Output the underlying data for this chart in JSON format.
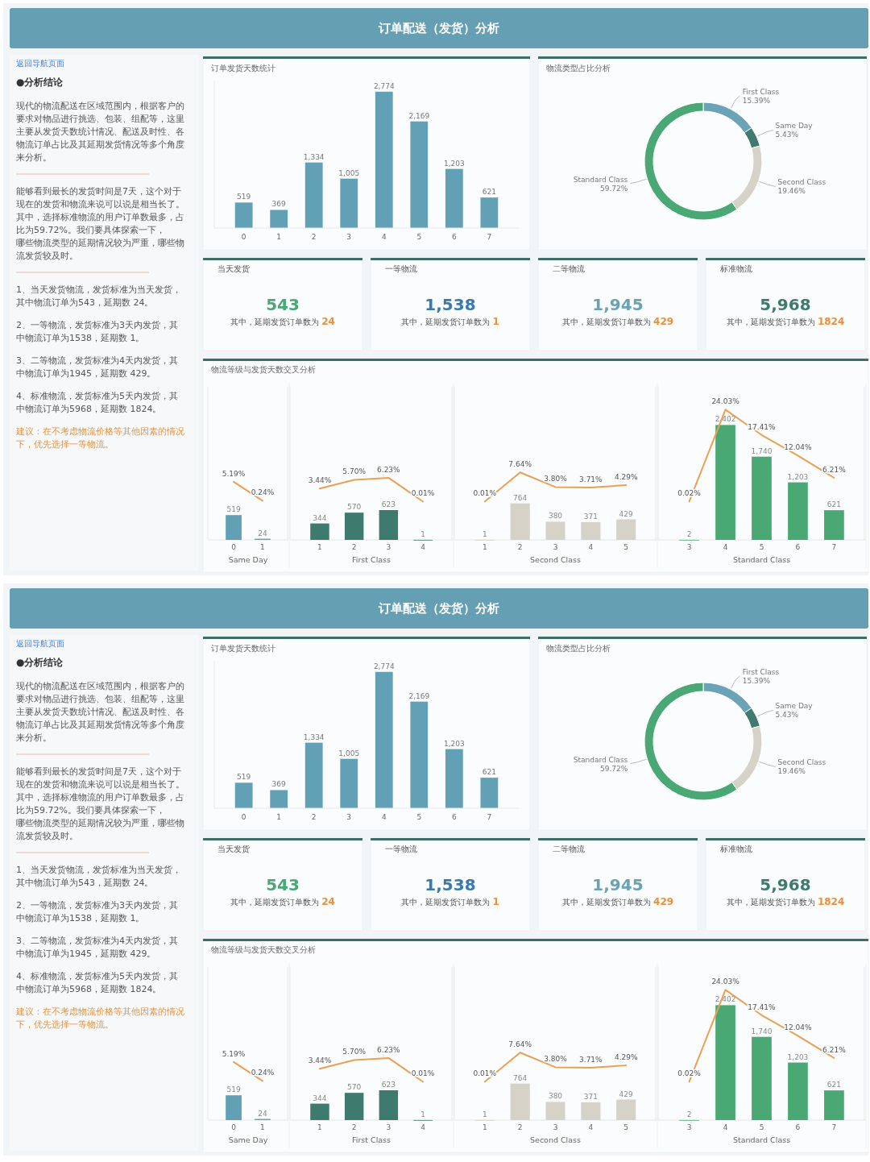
{
  "chart_data": [
    {
      "type": "other",
      "title": "订单配送（发货）分析",
      "annotations": [
        "返回导航页面",
        "●分析结论",
        "现代的物流配送在区域范围内，根据客户的要求对物品进行挑选、包装、组配等，这里主要从发货天数统计情况、配送及时性、各物流订单占比及其延期发货情况等多个角度来分析。",
        "能够看到最长的发货时间是7天，这个对于现在的发货和物流来说可以说是相当长了。其中，选择标准物流的用户订单数最多，占比为59.72%。我们要具体探索一下，哪些物流类型的延期情况较为严重，哪些物流发货较及时。",
        "1、当天发货物流，发货标准为当天发货，其中物流订单为543，延期数 24。",
        "2、一等物流，发货标准为3天内发货，其中物流订单为1538，延期数 1。",
        "3、二等物流，发货标准为4天内发货，其中物流订单为1945，延期数 429。",
        "4、标准物流，发货标准为5天内发货，其中物流订单为5968，延期数 1824。",
        "建议：在不考虑物流价格等其他因素的情况下，优先选择一等物流。"
      ]
    },
    {
      "type": "bar",
      "title": "订单发货天数统计",
      "categories": [
        "0",
        "1",
        "2",
        "3",
        "4",
        "5",
        "6",
        "7"
      ],
      "values": [
        519,
        369,
        1334,
        1005,
        2774,
        2169,
        1203,
        621
      ],
      "value_labels": [
        "519",
        "369",
        "1,334",
        "1,005",
        "2,774",
        "2,169",
        "1,203",
        "621"
      ],
      "color": "#62a0b6",
      "ylim": [
        0,
        3000
      ],
      "tick_labels": "x"
    },
    {
      "type": "donut",
      "title": "物流类型占比分析",
      "categories": [
        "First Class",
        "Same Day",
        "Second Class",
        "Standard Class"
      ],
      "values": [
        15.39,
        5.43,
        19.46,
        59.72
      ],
      "value_labels": [
        "15.39%",
        "5.43%",
        "19.46%",
        "59.72%"
      ],
      "colors": [
        "#6aa3b8",
        "#3f7a6e",
        "#d6d2c8",
        "#4aa874"
      ]
    },
    {
      "type": "other",
      "title": "当天发货",
      "annotations": [
        "543",
        "其中，延期发货订单数为 ",
        "24"
      ],
      "color": "#4aa874"
    },
    {
      "type": "other",
      "title": "一等物流",
      "annotations": [
        "1,538",
        "其中，延期发货订单数为 ",
        "1"
      ],
      "color": "#3b78b0"
    },
    {
      "type": "other",
      "title": "二等物流",
      "annotations": [
        "1,945",
        "其中，延期发货订单数为 ",
        "429"
      ],
      "color": "#6aa3b8"
    },
    {
      "type": "other",
      "title": "标准物流",
      "annotations": [
        "5,968",
        "其中，延期发货订单数为 ",
        "1824"
      ],
      "color": "#3f7a6e"
    },
    {
      "type": "bar",
      "title": "物流等级与发货天数交叉分析",
      "xlabel": "Same Day",
      "categories": [
        "0",
        "1"
      ],
      "ylim": [
        0,
        3200
      ],
      "y2lim": [
        -10,
        30
      ],
      "tick_labels": "x",
      "series": [
        {
          "type": "bar",
          "color": "#62a0b6",
          "values": [
            519,
            24
          ],
          "value_labels": [
            "519",
            "24"
          ]
        },
        {
          "type": "line",
          "axis": "y2",
          "color": "#e8a153",
          "values": [
            5.19,
            0.24
          ],
          "value_labels": [
            "5.19%",
            "0.24%"
          ]
        }
      ]
    },
    {
      "type": "bar",
      "xlabel": "First Class",
      "categories": [
        "1",
        "2",
        "3",
        "4"
      ],
      "ylim": [
        0,
        3200
      ],
      "y2lim": [
        -10,
        30
      ],
      "tick_labels": "x",
      "series": [
        {
          "type": "bar",
          "color": "#3f7a6e",
          "values": [
            344,
            570,
            623,
            1
          ],
          "value_labels": [
            "344",
            "570",
            "623",
            "1"
          ]
        },
        {
          "type": "line",
          "axis": "y2",
          "color": "#e8a153",
          "values": [
            3.44,
            5.7,
            6.23,
            0.01
          ],
          "value_labels": [
            "3.44%",
            "5.70%",
            "6.23%",
            "0.01%"
          ]
        }
      ]
    },
    {
      "type": "bar",
      "xlabel": "Second Class",
      "categories": [
        "1",
        "2",
        "3",
        "4",
        "5"
      ],
      "ylim": [
        0,
        3200
      ],
      "y2lim": [
        -10,
        30
      ],
      "tick_labels": "x",
      "series": [
        {
          "type": "bar",
          "color": "#d6d2c8",
          "values": [
            1,
            764,
            380,
            371,
            429
          ],
          "value_labels": [
            "1",
            "764",
            "380",
            "371",
            "429"
          ]
        },
        {
          "type": "line",
          "axis": "y2",
          "color": "#e8a153",
          "values": [
            0.01,
            7.64,
            3.8,
            3.71,
            4.29
          ],
          "value_labels": [
            "0.01%",
            "7.64%",
            "3.80%",
            "3.71%",
            "4.29%"
          ]
        }
      ]
    },
    {
      "type": "bar",
      "xlabel": "Standard Class",
      "categories": [
        "3",
        "4",
        "5",
        "6",
        "7"
      ],
      "ylim": [
        0,
        3200
      ],
      "y2lim": [
        -10,
        30
      ],
      "tick_labels": "x",
      "series": [
        {
          "type": "bar",
          "color": "#4aa874",
          "values": [
            2,
            2402,
            1740,
            1203,
            621
          ],
          "value_labels": [
            "2",
            "2,402",
            "1,740",
            "1,203",
            "621"
          ]
        },
        {
          "type": "line",
          "axis": "y2",
          "color": "#e8a153",
          "values": [
            0.02,
            24.03,
            17.41,
            12.04,
            6.21
          ],
          "value_labels": [
            "0.02%",
            "24.03%",
            "17.41%",
            "12.04%",
            "6.21%"
          ]
        }
      ]
    },
    {
      "type": "other",
      "title": "订单配送（发货）分析",
      "annotations": [
        "返回导航页面",
        "●分析结论",
        "现代的物流配送在区域范围内，根据客户的要求对物品进行挑选、包装、组配等，这里主要从发货天数统计情况、配送及时性、各物流订单占比及其延期发货情况等多个角度来分析。",
        "能够看到最长的发货时间是7天，这个对于现在的发货和物流来说可以说是相当长了。其中，选择标准物流的用户订单数最多，占比为59.72%。我们要具体探索一下，哪些物流类型的延期情况较为严重，哪些物流发货较及时。",
        "1、当天发货物流，发货标准为当天发货，其中物流订单为543，延期数 24。",
        "2、一等物流，发货标准为3天内发货，其中物流订单为1538，延期数 1。",
        "3、二等物流，发货标准为4天内发货，其中物流订单为1945，延期数 429。",
        "4、标准物流，发货标准为5天内发货，其中物流订单为5968，延期数 1824。",
        "建议：在不考虑物流价格等其他因素的情况下，优先选择一等物流。"
      ]
    },
    {
      "type": "bar",
      "title": "订单发货天数统计",
      "categories": [
        "0",
        "1",
        "2",
        "3",
        "4",
        "5",
        "6",
        "7"
      ],
      "values": [
        519,
        369,
        1334,
        1005,
        2774,
        2169,
        1203,
        621
      ],
      "value_labels": [
        "519",
        "369",
        "1,334",
        "1,005",
        "2,774",
        "2,169",
        "1,203",
        "621"
      ],
      "color": "#62a0b6",
      "ylim": [
        0,
        3000
      ],
      "tick_labels": "x"
    },
    {
      "type": "donut",
      "title": "物流类型占比分析",
      "categories": [
        "First Class",
        "Same Day",
        "Second Class",
        "Standard Class"
      ],
      "values": [
        15.39,
        5.43,
        19.46,
        59.72
      ],
      "value_labels": [
        "15.39%",
        "5.43%",
        "19.46%",
        "59.72%"
      ],
      "colors": [
        "#6aa3b8",
        "#3f7a6e",
        "#d6d2c8",
        "#4aa874"
      ]
    },
    {
      "type": "other",
      "title": "当天发货",
      "annotations": [
        "543",
        "其中，延期发货订单数为 ",
        "24"
      ],
      "color": "#4aa874"
    },
    {
      "type": "other",
      "title": "一等物流",
      "annotations": [
        "1,538",
        "其中，延期发货订单数为 ",
        "1"
      ],
      "color": "#3b78b0"
    },
    {
      "type": "other",
      "title": "二等物流",
      "annotations": [
        "1,945",
        "其中，延期发货订单数为 ",
        "429"
      ],
      "color": "#6aa3b8"
    },
    {
      "type": "other",
      "title": "标准物流",
      "annotations": [
        "5,968",
        "其中，延期发货订单数为 ",
        "1824"
      ],
      "color": "#3f7a6e"
    },
    {
      "type": "bar",
      "title": "物流等级与发货天数交叉分析",
      "xlabel": "Same Day",
      "categories": [
        "0",
        "1"
      ],
      "ylim": [
        0,
        3200
      ],
      "y2lim": [
        -10,
        30
      ],
      "tick_labels": "x",
      "series": [
        {
          "type": "bar",
          "color": "#62a0b6",
          "values": [
            519,
            24
          ],
          "value_labels": [
            "519",
            "24"
          ]
        },
        {
          "type": "line",
          "axis": "y2",
          "color": "#e8a153",
          "values": [
            5.19,
            0.24
          ],
          "value_labels": [
            "5.19%",
            "0.24%"
          ]
        }
      ]
    },
    {
      "type": "bar",
      "xlabel": "First Class",
      "categories": [
        "1",
        "2",
        "3",
        "4"
      ],
      "ylim": [
        0,
        3200
      ],
      "y2lim": [
        -10,
        30
      ],
      "tick_labels": "x",
      "series": [
        {
          "type": "bar",
          "color": "#3f7a6e",
          "values": [
            344,
            570,
            623,
            1
          ],
          "value_labels": [
            "344",
            "570",
            "623",
            "1"
          ]
        },
        {
          "type": "line",
          "axis": "y2",
          "color": "#e8a153",
          "values": [
            3.44,
            5.7,
            6.23,
            0.01
          ],
          "value_labels": [
            "3.44%",
            "5.70%",
            "6.23%",
            "0.01%"
          ]
        }
      ]
    },
    {
      "type": "bar",
      "xlabel": "Second Class",
      "categories": [
        "1",
        "2",
        "3",
        "4",
        "5"
      ],
      "ylim": [
        0,
        3200
      ],
      "y2lim": [
        -10,
        30
      ],
      "tick_labels": "x",
      "series": [
        {
          "type": "bar",
          "color": "#d6d2c8",
          "values": [
            1,
            764,
            380,
            371,
            429
          ],
          "value_labels": [
            "1",
            "764",
            "380",
            "371",
            "429"
          ]
        },
        {
          "type": "line",
          "axis": "y2",
          "color": "#e8a153",
          "values": [
            0.01,
            7.64,
            3.8,
            3.71,
            4.29
          ],
          "value_labels": [
            "0.01%",
            "7.64%",
            "3.80%",
            "3.71%",
            "4.29%"
          ]
        }
      ]
    },
    {
      "type": "bar",
      "xlabel": "Standard Class",
      "categories": [
        "3",
        "4",
        "5",
        "6",
        "7"
      ],
      "ylim": [
        0,
        3200
      ],
      "y2lim": [
        -10,
        30
      ],
      "tick_labels": "x",
      "series": [
        {
          "type": "bar",
          "color": "#4aa874",
          "values": [
            2,
            2402,
            1740,
            1203,
            621
          ],
          "value_labels": [
            "2",
            "2,402",
            "1,740",
            "1,203",
            "621"
          ]
        },
        {
          "type": "line",
          "axis": "y2",
          "color": "#e8a153",
          "values": [
            0.02,
            24.03,
            17.41,
            12.04,
            6.21
          ],
          "value_labels": [
            "0.02%",
            "24.03%",
            "17.41%",
            "12.04%",
            "6.21%"
          ]
        }
      ]
    }
  ]
}
